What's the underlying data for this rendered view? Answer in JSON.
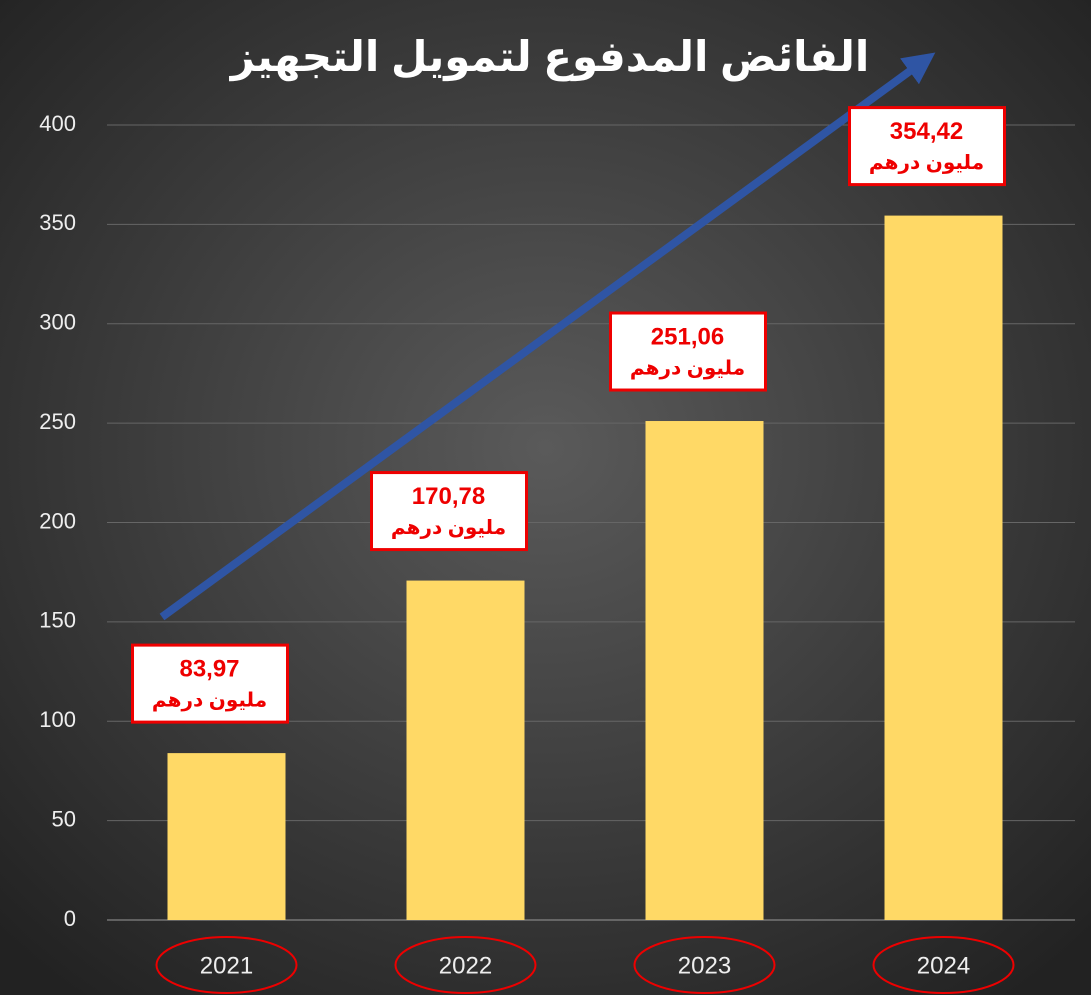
{
  "chart_data": {
    "type": "bar",
    "title": "الفائض المدفوع لتمويل التجهيز",
    "categories": [
      "2021",
      "2022",
      "2023",
      "2024"
    ],
    "values": [
      83.97,
      170.78,
      251.06,
      354.42
    ],
    "value_labels": [
      "83,97",
      "170,78",
      "251,06",
      "354,42"
    ],
    "unit_label": "مليون درهم",
    "color": "#ffd966",
    "ylim": [
      0,
      400
    ],
    "yticks": [
      0,
      50,
      100,
      150,
      200,
      250,
      300,
      350,
      400
    ],
    "grid": true
  }
}
